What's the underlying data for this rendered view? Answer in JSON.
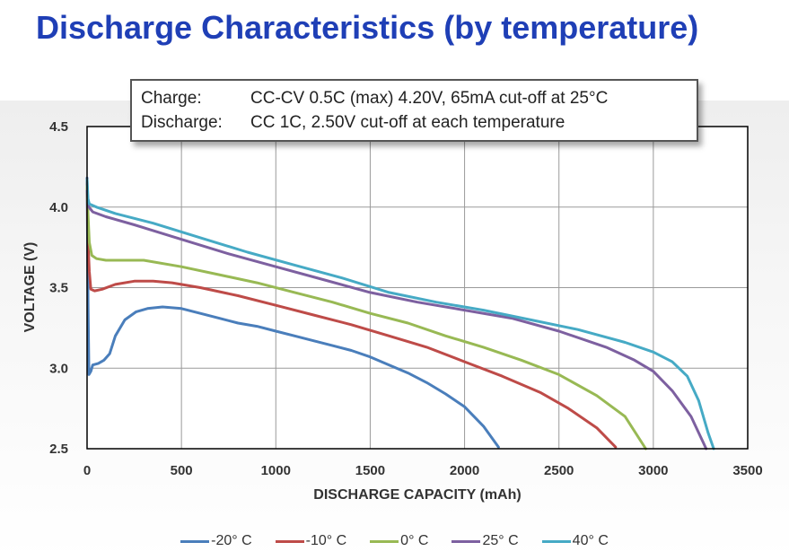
{
  "page": {
    "title": "Discharge Characteristics (by temperature)"
  },
  "note": {
    "rows": [
      {
        "label": "Charge:",
        "text": "CC-CV 0.5C (max) 4.20V, 65mA cut-off at 25°C"
      },
      {
        "label": "Discharge:",
        "text": "CC 1C, 2.50V cut-off at each temperature"
      }
    ]
  },
  "chart_data": {
    "type": "line",
    "xlabel": "DISCHARGE CAPACITY (mAh)",
    "ylabel": "VOLTAGE (V)",
    "xlim": [
      0,
      3500
    ],
    "ylim": [
      2.5,
      4.5
    ],
    "xticks": [
      "0",
      "500",
      "1000",
      "1500",
      "2000",
      "2500",
      "3000",
      "3500"
    ],
    "yticks": [
      "2.5",
      "3.0",
      "3.5",
      "4.0",
      "4.5"
    ],
    "grid": true,
    "legend_position": "bottom",
    "series": [
      {
        "name": "-20°  C",
        "color": "#4a7ebb",
        "points": [
          [
            0,
            4.18
          ],
          [
            5,
            3.4
          ],
          [
            10,
            2.96
          ],
          [
            20,
            2.98
          ],
          [
            30,
            3.02
          ],
          [
            60,
            3.03
          ],
          [
            90,
            3.05
          ],
          [
            120,
            3.09
          ],
          [
            150,
            3.2
          ],
          [
            200,
            3.3
          ],
          [
            260,
            3.35
          ],
          [
            320,
            3.37
          ],
          [
            400,
            3.38
          ],
          [
            500,
            3.37
          ],
          [
            600,
            3.34
          ],
          [
            700,
            3.31
          ],
          [
            800,
            3.28
          ],
          [
            900,
            3.26
          ],
          [
            1000,
            3.23
          ],
          [
            1100,
            3.2
          ],
          [
            1200,
            3.17
          ],
          [
            1300,
            3.14
          ],
          [
            1400,
            3.11
          ],
          [
            1500,
            3.07
          ],
          [
            1600,
            3.02
          ],
          [
            1700,
            2.97
          ],
          [
            1800,
            2.91
          ],
          [
            1900,
            2.84
          ],
          [
            2000,
            2.76
          ],
          [
            2100,
            2.64
          ],
          [
            2180,
            2.51
          ]
        ]
      },
      {
        "name": "-10°  C",
        "color": "#be4b48",
        "points": [
          [
            0,
            4.17
          ],
          [
            5,
            3.78
          ],
          [
            12,
            3.6
          ],
          [
            20,
            3.49
          ],
          [
            40,
            3.48
          ],
          [
            80,
            3.49
          ],
          [
            150,
            3.52
          ],
          [
            250,
            3.54
          ],
          [
            350,
            3.54
          ],
          [
            450,
            3.53
          ],
          [
            600,
            3.5
          ],
          [
            800,
            3.45
          ],
          [
            1000,
            3.39
          ],
          [
            1200,
            3.33
          ],
          [
            1400,
            3.27
          ],
          [
            1600,
            3.2
          ],
          [
            1800,
            3.13
          ],
          [
            2000,
            3.04
          ],
          [
            2200,
            2.95
          ],
          [
            2400,
            2.85
          ],
          [
            2550,
            2.75
          ],
          [
            2700,
            2.63
          ],
          [
            2800,
            2.51
          ]
        ]
      },
      {
        "name": "0°  C",
        "color": "#98b954",
        "points": [
          [
            0,
            4.13
          ],
          [
            5,
            3.95
          ],
          [
            12,
            3.78
          ],
          [
            25,
            3.7
          ],
          [
            50,
            3.68
          ],
          [
            100,
            3.67
          ],
          [
            200,
            3.67
          ],
          [
            300,
            3.67
          ],
          [
            500,
            3.63
          ],
          [
            700,
            3.58
          ],
          [
            900,
            3.53
          ],
          [
            1100,
            3.47
          ],
          [
            1300,
            3.41
          ],
          [
            1500,
            3.34
          ],
          [
            1700,
            3.28
          ],
          [
            1900,
            3.2
          ],
          [
            2100,
            3.13
          ],
          [
            2300,
            3.05
          ],
          [
            2500,
            2.96
          ],
          [
            2700,
            2.83
          ],
          [
            2850,
            2.7
          ],
          [
            2960,
            2.5
          ]
        ]
      },
      {
        "name": "25°  C",
        "color": "#7d60a0",
        "points": [
          [
            0,
            4.1
          ],
          [
            10,
            4.0
          ],
          [
            30,
            3.97
          ],
          [
            100,
            3.94
          ],
          [
            250,
            3.89
          ],
          [
            500,
            3.8
          ],
          [
            750,
            3.71
          ],
          [
            1000,
            3.63
          ],
          [
            1250,
            3.55
          ],
          [
            1500,
            3.47
          ],
          [
            1750,
            3.41
          ],
          [
            2000,
            3.36
          ],
          [
            2250,
            3.31
          ],
          [
            2500,
            3.23
          ],
          [
            2750,
            3.13
          ],
          [
            2900,
            3.05
          ],
          [
            3000,
            2.98
          ],
          [
            3100,
            2.86
          ],
          [
            3200,
            2.7
          ],
          [
            3260,
            2.55
          ],
          [
            3280,
            2.5
          ]
        ]
      },
      {
        "name": "40°  C",
        "color": "#46aac5",
        "points": [
          [
            0,
            4.17
          ],
          [
            5,
            4.05
          ],
          [
            12,
            4.02
          ],
          [
            50,
            4.0
          ],
          [
            150,
            3.96
          ],
          [
            350,
            3.9
          ],
          [
            600,
            3.81
          ],
          [
            850,
            3.72
          ],
          [
            1100,
            3.64
          ],
          [
            1350,
            3.56
          ],
          [
            1600,
            3.47
          ],
          [
            1850,
            3.41
          ],
          [
            2100,
            3.36
          ],
          [
            2350,
            3.3
          ],
          [
            2600,
            3.24
          ],
          [
            2850,
            3.16
          ],
          [
            3000,
            3.1
          ],
          [
            3100,
            3.04
          ],
          [
            3180,
            2.95
          ],
          [
            3240,
            2.8
          ],
          [
            3290,
            2.6
          ],
          [
            3320,
            2.5
          ]
        ]
      }
    ]
  }
}
